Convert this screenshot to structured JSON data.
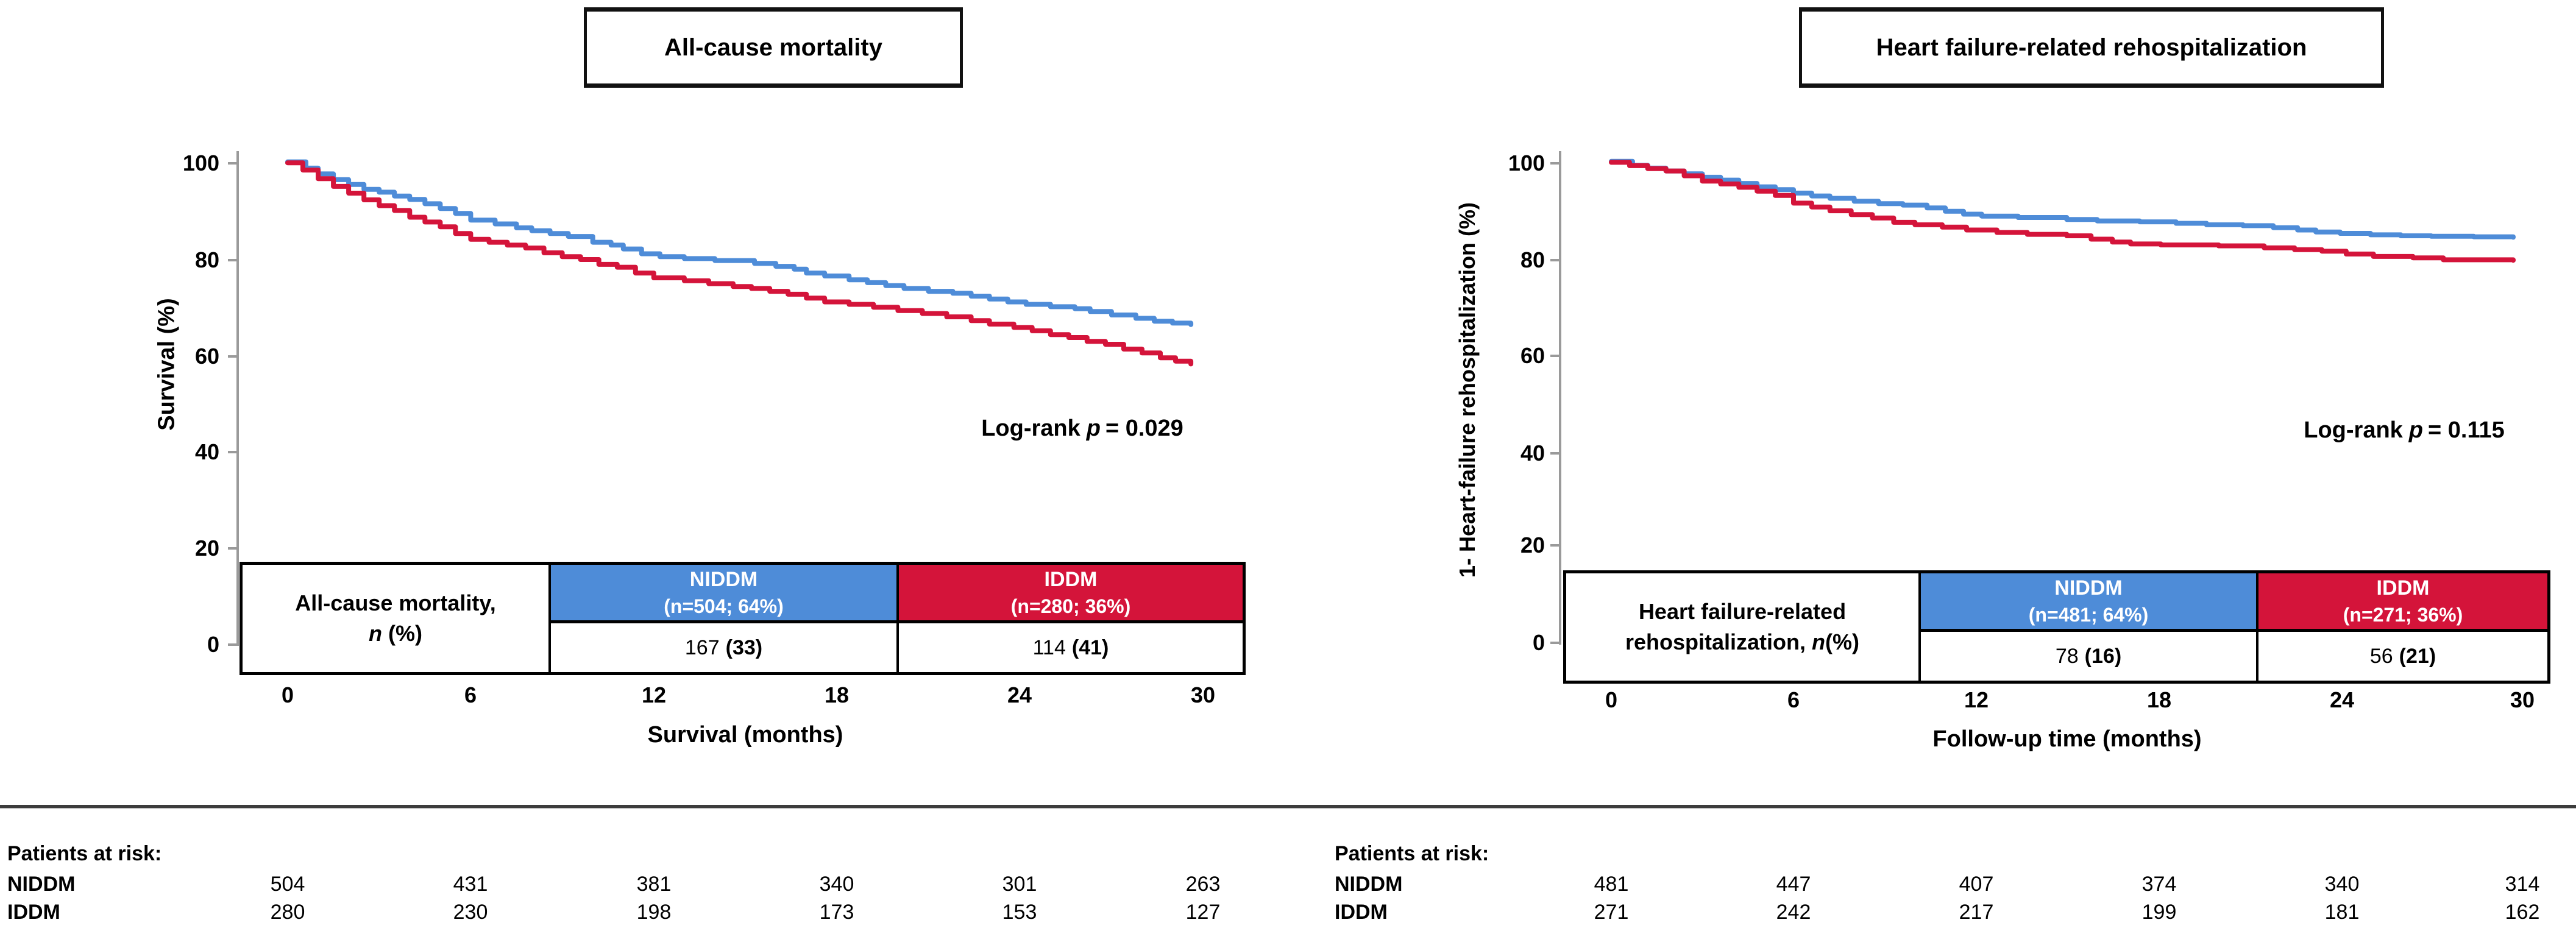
{
  "figure": {
    "background": "#ffffff",
    "accent_blue": "#4E8CD8",
    "accent_red": "#D4143A",
    "axis_color": "#9a9a9a"
  },
  "charts": [
    {
      "title": "All-cause mortality",
      "y_axis": {
        "label": "Survival (%)",
        "ticks": [
          "100",
          "80",
          "60",
          "40",
          "20",
          "0"
        ]
      },
      "x_axis": {
        "label": "Survival (months)",
        "ticks": [
          "0",
          "6",
          "12",
          "18",
          "24",
          "30"
        ]
      },
      "logrank": {
        "prefix": "Log-rank",
        "p": "p",
        "value": "= 0.029"
      },
      "table": {
        "row_label_line1": "All-cause mortality,",
        "row_label_n": "n",
        "row_label_suffix": " (%)",
        "groups": [
          {
            "name": "NIDDM",
            "count": "(n=504; 64%)",
            "events": "167",
            "events_pct": "(33)",
            "color": "#4E8CD8"
          },
          {
            "name": "IDDM",
            "count": "(n=280; 36%)",
            "events": "114",
            "events_pct": "(41)",
            "color": "#D4143A"
          }
        ]
      }
    },
    {
      "title": "Heart failure-related rehospitalization",
      "y_axis": {
        "label": "1- Heart-failure rehospitalization (%)",
        "ticks": [
          "100",
          "80",
          "60",
          "40",
          "20",
          "0"
        ]
      },
      "x_axis": {
        "label": "Follow-up time (months)",
        "ticks": [
          "0",
          "6",
          "12",
          "18",
          "24",
          "30"
        ]
      },
      "logrank": {
        "prefix": "Log-rank",
        "p": "p",
        "value": "= 0.115"
      },
      "table": {
        "row_label_line1": "Heart failure-related",
        "row_label_line2_prefix": "rehospitalization, ",
        "row_label_n": "n",
        "row_label_suffix": "(%)",
        "groups": [
          {
            "name": "NIDDM",
            "count": "(n=481; 64%)",
            "events": "78",
            "events_pct": "(16)",
            "color": "#4E8CD8"
          },
          {
            "name": "IDDM",
            "count": "(n=271; 36%)",
            "events": "56",
            "events_pct": "(21)",
            "color": "#D4143A"
          }
        ]
      }
    }
  ],
  "chart_data": [
    {
      "type": "line",
      "subtype": "kaplan-meier-step",
      "title": "All-cause mortality",
      "xlabel": "Survival (months)",
      "ylabel": "Survival (%)",
      "xlim": [
        0,
        30
      ],
      "ylim": [
        0,
        100
      ],
      "x_ticks": [
        0,
        6,
        12,
        18,
        24,
        30
      ],
      "y_ticks": [
        0,
        20,
        40,
        60,
        80,
        100
      ],
      "grid": false,
      "legend_position": "none",
      "annotation": "Log-rank p = 0.029",
      "series": [
        {
          "name": "NIDDM",
          "color": "#4E8CD8",
          "n": 504,
          "events": 167,
          "events_pct": 33,
          "points": [
            [
              0,
              100.3
            ],
            [
              0.6,
              99
            ],
            [
              1,
              97.8
            ],
            [
              1.5,
              96.6
            ],
            [
              2,
              95.6
            ],
            [
              2.5,
              94.6
            ],
            [
              3,
              94
            ],
            [
              3.5,
              93.2
            ],
            [
              4,
              92.5
            ],
            [
              4.5,
              91.6
            ],
            [
              5,
              90.6
            ],
            [
              5.5,
              89.6
            ],
            [
              6,
              88.2
            ],
            [
              6.8,
              87.4
            ],
            [
              7.5,
              86.6
            ],
            [
              8,
              86
            ],
            [
              8.6,
              85.4
            ],
            [
              9.2,
              84.8
            ],
            [
              10,
              83.6
            ],
            [
              10.6,
              83
            ],
            [
              11,
              82.2
            ],
            [
              11.6,
              81.2
            ],
            [
              12.2,
              80.6
            ],
            [
              13,
              80.2
            ],
            [
              14,
              79.8
            ],
            [
              15.3,
              79.2
            ],
            [
              16,
              78.6
            ],
            [
              16.6,
              78
            ],
            [
              17,
              77.2
            ],
            [
              17.6,
              76.6
            ],
            [
              18.4,
              75.8
            ],
            [
              19,
              75.2
            ],
            [
              19.6,
              74.6
            ],
            [
              20.2,
              74
            ],
            [
              21,
              73.4
            ],
            [
              21.8,
              73
            ],
            [
              22.4,
              72.4
            ],
            [
              23,
              71.8
            ],
            [
              23.6,
              71.2
            ],
            [
              24.2,
              70.7
            ],
            [
              25,
              70.2
            ],
            [
              25.8,
              69.8
            ],
            [
              26.3,
              69.2
            ],
            [
              27,
              68.5
            ],
            [
              27.8,
              67.8
            ],
            [
              28.4,
              67.2
            ],
            [
              29,
              66.8
            ],
            [
              29.6,
              66.5
            ]
          ]
        },
        {
          "name": "IDDM",
          "color": "#D4143A",
          "n": 280,
          "events": 114,
          "events_pct": 41,
          "points": [
            [
              0,
              100.1
            ],
            [
              0.5,
              98.6
            ],
            [
              1,
              96.8
            ],
            [
              1.5,
              95.2
            ],
            [
              2,
              93.8
            ],
            [
              2.5,
              92.4
            ],
            [
              3,
              91.2
            ],
            [
              3.5,
              90.2
            ],
            [
              4,
              88.8
            ],
            [
              4.5,
              87.8
            ],
            [
              5,
              86.8
            ],
            [
              5.5,
              85.4
            ],
            [
              6,
              84.2
            ],
            [
              6.6,
              83.6
            ],
            [
              7.2,
              83
            ],
            [
              7.8,
              82.4
            ],
            [
              8.4,
              81.4
            ],
            [
              9,
              80.6
            ],
            [
              9.6,
              80
            ],
            [
              10.2,
              79
            ],
            [
              10.8,
              78.4
            ],
            [
              11.4,
              77.2
            ],
            [
              12,
              76.2
            ],
            [
              13,
              75.6
            ],
            [
              13.8,
              75
            ],
            [
              14.6,
              74.4
            ],
            [
              15.2,
              74
            ],
            [
              15.8,
              73.4
            ],
            [
              16.4,
              72.8
            ],
            [
              17,
              72
            ],
            [
              17.6,
              71.2
            ],
            [
              18.4,
              70.7
            ],
            [
              19.2,
              70.1
            ],
            [
              20,
              69.4
            ],
            [
              20.8,
              68.8
            ],
            [
              21.6,
              68.1
            ],
            [
              22.4,
              67.3
            ],
            [
              23,
              66.6
            ],
            [
              23.8,
              65.9
            ],
            [
              24.4,
              65.2
            ],
            [
              25,
              64.4
            ],
            [
              25.6,
              63.8
            ],
            [
              26.2,
              63
            ],
            [
              26.8,
              62.4
            ],
            [
              27.4,
              61.4
            ],
            [
              28,
              60.6
            ],
            [
              28.6,
              59.6
            ],
            [
              29.1,
              58.9
            ],
            [
              29.6,
              58.3
            ]
          ]
        }
      ]
    },
    {
      "type": "line",
      "subtype": "kaplan-meier-step",
      "title": "Heart failure-related rehospitalization",
      "xlabel": "Follow-up time (months)",
      "ylabel": "1- Heart-failure rehospitalization (%)",
      "xlim": [
        0,
        30
      ],
      "ylim": [
        0,
        100
      ],
      "x_ticks": [
        0,
        6,
        12,
        18,
        24,
        30
      ],
      "y_ticks": [
        0,
        20,
        40,
        60,
        80,
        100
      ],
      "grid": false,
      "legend_position": "none",
      "annotation": "Log-rank p = 0.115",
      "series": [
        {
          "name": "NIDDM",
          "color": "#4E8CD8",
          "n": 481,
          "events": 78,
          "events_pct": 16,
          "points": [
            [
              0,
              100.4
            ],
            [
              0.7,
              99.6
            ],
            [
              1.2,
              99
            ],
            [
              1.8,
              98.4
            ],
            [
              2.4,
              97.8
            ],
            [
              3,
              97.1
            ],
            [
              3.6,
              96.5
            ],
            [
              4.2,
              95.8
            ],
            [
              4.8,
              95.1
            ],
            [
              5.4,
              94.5
            ],
            [
              6,
              93.8
            ],
            [
              6.6,
              93.2
            ],
            [
              7.2,
              92.7
            ],
            [
              8,
              92.1
            ],
            [
              8.8,
              91.6
            ],
            [
              9.6,
              91.3
            ],
            [
              10.4,
              90.7
            ],
            [
              11,
              90
            ],
            [
              11.6,
              89.4
            ],
            [
              12.2,
              89
            ],
            [
              13.4,
              88.7
            ],
            [
              15,
              88.3
            ],
            [
              16,
              88
            ],
            [
              17.4,
              87.8
            ],
            [
              18.6,
              87.5
            ],
            [
              19.6,
              87.2
            ],
            [
              20.8,
              87
            ],
            [
              21.8,
              86.6
            ],
            [
              22.6,
              86.1
            ],
            [
              23.2,
              85.7
            ],
            [
              24,
              85.4
            ],
            [
              25,
              85.1
            ],
            [
              26,
              84.9
            ],
            [
              27,
              84.8
            ],
            [
              28.4,
              84.7
            ],
            [
              29.7,
              84.6
            ]
          ]
        },
        {
          "name": "IDDM",
          "color": "#D4143A",
          "n": 271,
          "events": 56,
          "events_pct": 21,
          "points": [
            [
              0,
              100.2
            ],
            [
              0.6,
              99.5
            ],
            [
              1.2,
              98.9
            ],
            [
              1.8,
              98.4
            ],
            [
              2.4,
              97.4
            ],
            [
              3,
              96.3
            ],
            [
              3.6,
              95.7
            ],
            [
              4.2,
              95
            ],
            [
              4.8,
              94.2
            ],
            [
              5.4,
              93.3
            ],
            [
              6,
              91.7
            ],
            [
              6.6,
              90.9
            ],
            [
              7.2,
              90.1
            ],
            [
              7.9,
              89.3
            ],
            [
              8.6,
              88.6
            ],
            [
              9.3,
              87.7
            ],
            [
              10,
              87.2
            ],
            [
              10.9,
              86.7
            ],
            [
              11.7,
              86.1
            ],
            [
              12.7,
              85.6
            ],
            [
              13.7,
              85.2
            ],
            [
              15,
              84.9
            ],
            [
              15.8,
              84.2
            ],
            [
              16.5,
              83.6
            ],
            [
              17.1,
              83.2
            ],
            [
              18.1,
              83
            ],
            [
              20,
              82.8
            ],
            [
              21.5,
              82.4
            ],
            [
              22.5,
              82
            ],
            [
              23.4,
              81.7
            ],
            [
              24.2,
              81.1
            ],
            [
              25.1,
              80.6
            ],
            [
              26.4,
              80.3
            ],
            [
              27.4,
              79.9
            ],
            [
              29.7,
              79.8
            ]
          ]
        }
      ]
    }
  ],
  "risk_sections": [
    {
      "heading": "Patients at risk:",
      "rows": [
        {
          "label": "NIDDM",
          "values": [
            "504",
            "431",
            "381",
            "340",
            "301",
            "263"
          ]
        },
        {
          "label": "IDDM",
          "values": [
            "280",
            "230",
            "198",
            "173",
            "153",
            "127"
          ]
        }
      ]
    },
    {
      "heading": "Patients at risk:",
      "rows": [
        {
          "label": "NIDDM",
          "values": [
            "481",
            "447",
            "407",
            "374",
            "340",
            "314"
          ]
        },
        {
          "label": "IDDM",
          "values": [
            "271",
            "242",
            "217",
            "199",
            "181",
            "162"
          ]
        }
      ]
    }
  ]
}
